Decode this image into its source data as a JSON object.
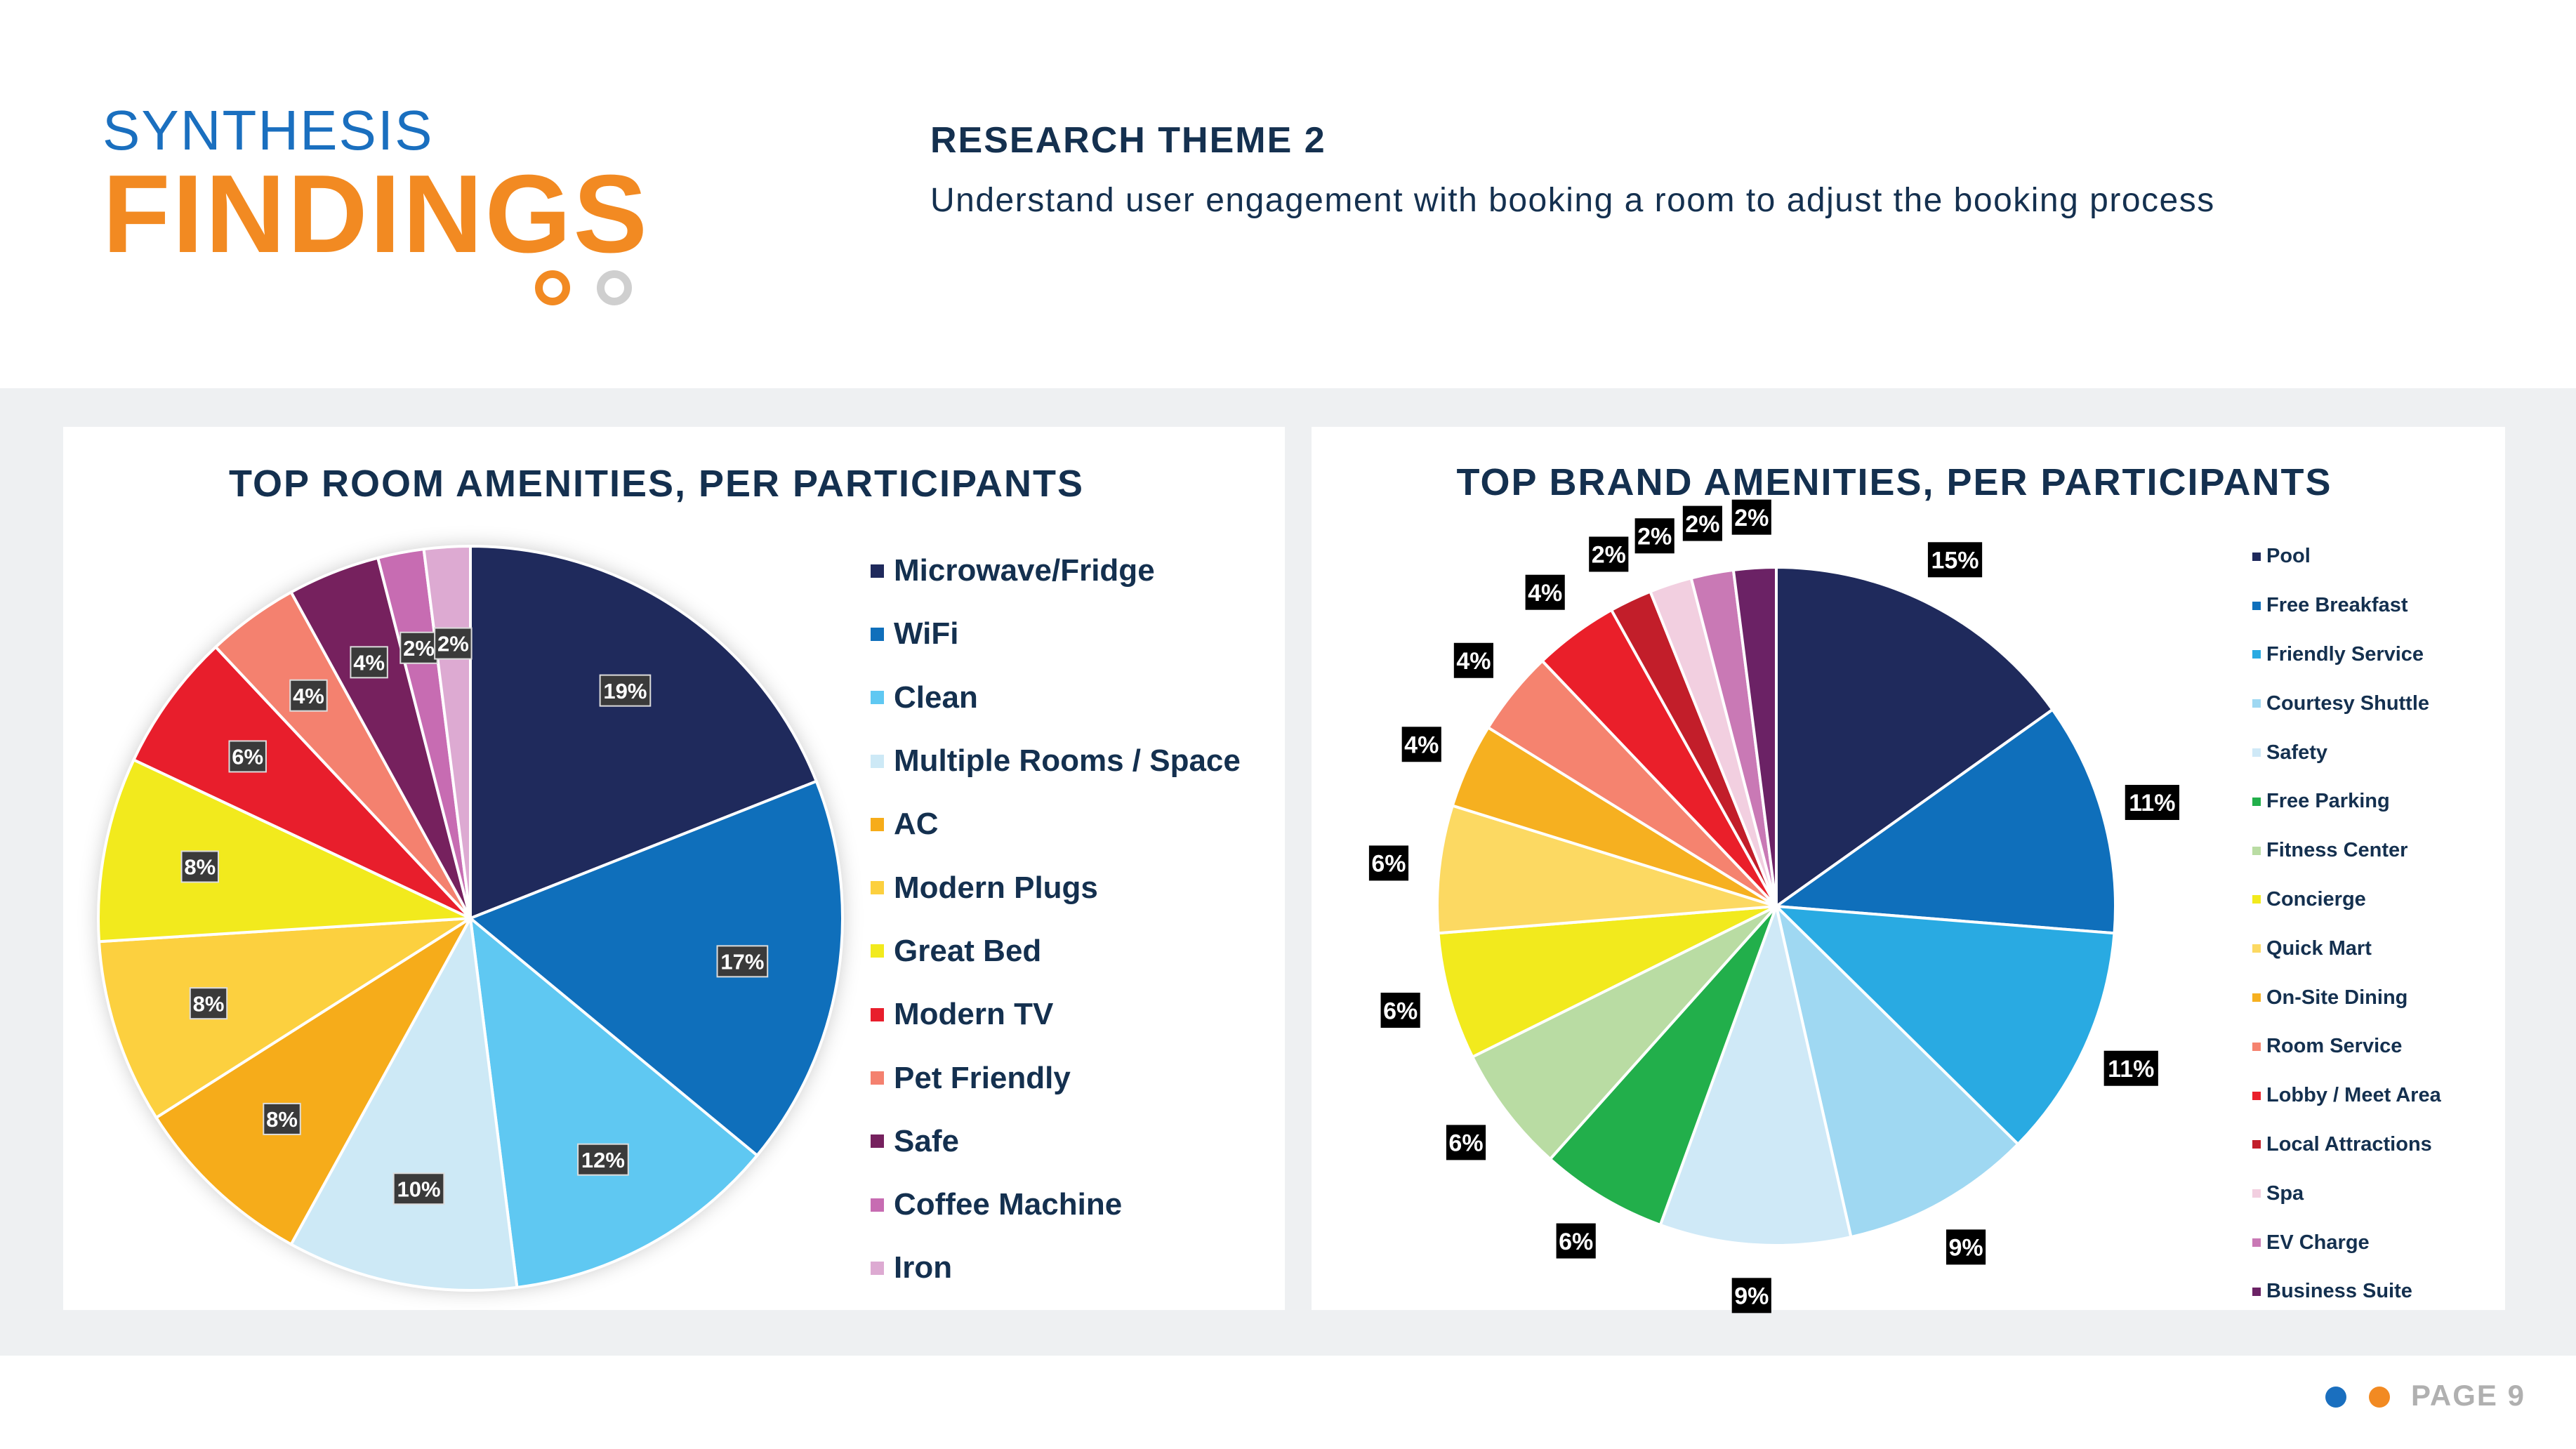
{
  "header": {
    "brand_top": "SYNTHESIS",
    "brand_main": "FINDINGS",
    "theme_title": "RESEARCH THEME 2",
    "theme_subtitle": "Understand user engagement with booking a room to adjust the booking process"
  },
  "colors": {
    "brand_blue": "#1a6fbf",
    "brand_orange": "#f28a22",
    "navy_text": "#14304f",
    "panel_bg": "#eef0f2"
  },
  "footer": {
    "page_label": "PAGE 9",
    "dot_colors": [
      "#1a6fbf",
      "#f28a22"
    ]
  },
  "chart_data": [
    {
      "type": "pie",
      "title": "TOP ROOM AMENITIES, PER PARTICIPANTS",
      "legend_position": "right",
      "label_style": "dark",
      "categories": [
        "Microwave/Fridge",
        "WiFi",
        "Clean",
        "Multiple Rooms / Space",
        "AC",
        "Modern Plugs",
        "Great Bed",
        "Modern TV",
        "Pet Friendly",
        "Safe",
        "Coffee Machine",
        "Iron"
      ],
      "values": [
        19,
        17,
        12,
        10,
        8,
        8,
        8,
        6,
        4,
        4,
        2,
        2
      ],
      "colors": [
        "#1f2a5c",
        "#0f6fbb",
        "#5fc8f2",
        "#cde9f6",
        "#f6ac1a",
        "#fcd03f",
        "#f2ea1d",
        "#e81e2c",
        "#f4816f",
        "#76215e",
        "#c76cb2",
        "#ddaad2"
      ]
    },
    {
      "type": "pie",
      "title": "TOP BRAND AMENITIES, PER PARTICIPANTS",
      "legend_position": "right",
      "label_style": "black",
      "categories": [
        "Pool",
        "Free Breakfast",
        "Friendly Service",
        "Courtesy Shuttle",
        "Safety",
        "Free Parking",
        "Fitness Center",
        "Concierge",
        "Quick Mart",
        "On-Site Dining",
        "Room Service",
        "Lobby / Meet Area",
        "Local Attractions",
        "Spa",
        "EV Charge",
        "Business Suite"
      ],
      "values": [
        15,
        11,
        11,
        9,
        9,
        6,
        6,
        6,
        6,
        4,
        4,
        4,
        2,
        2,
        2,
        2
      ],
      "colors": [
        "#1f2a5c",
        "#0f6fbb",
        "#29aae2",
        "#9fd8f2",
        "#cfe9f7",
        "#22af4b",
        "#b9dca3",
        "#f2ea1d",
        "#fcd962",
        "#f6b020",
        "#f5836f",
        "#ea1f2a",
        "#c21e2a",
        "#f2cfe0",
        "#c979b5",
        "#6b2265"
      ]
    }
  ]
}
